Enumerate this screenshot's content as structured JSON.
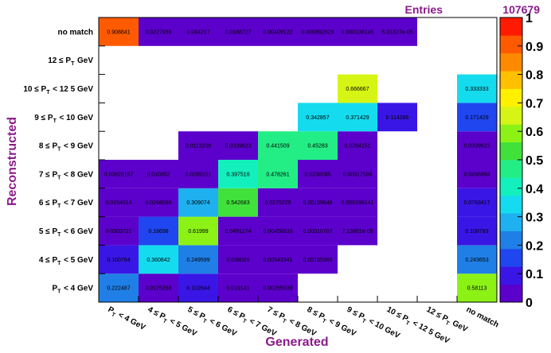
{
  "chart_data": {
    "type": "heatmap",
    "stats": {
      "label": "Entries",
      "value": "107679"
    },
    "xlabel": "Generated",
    "ylabel": "Reconstructed",
    "x_categories": [
      "P_T < 4 GeV",
      "4 ≤ P_T < 5 GeV",
      "5 ≤ P_T < 6 GeV",
      "6 ≤ P_T < 7 GeV",
      "7 ≤ P_T < 8 GeV",
      "8 ≤ P_T < 9 GeV",
      "9 ≤ P_T < 10 GeV",
      "10 ≤ P_T < 12 5 GeV",
      "12 ≤ P_T GeV",
      "no match"
    ],
    "y_categories": [
      "P_T < 4 GeV",
      "4 ≤ P_T < 5 GeV",
      "5 ≤ P_T < 6 GeV",
      "6 ≤ P_T < 7 GeV",
      "7 ≤ P_T < 8 GeV",
      "8 ≤ P_T < 9 GeV",
      "9 ≤ P_T < 10 GeV",
      "10 ≤ P_T < 12 5 GeV",
      "12 ≤ P_T GeV",
      "no match"
    ],
    "cells": [
      {
        "x": 0,
        "y": 0,
        "value": 0.222487,
        "label": "0.222487"
      },
      {
        "x": 1,
        "y": 0,
        "value": 0.0125288,
        "label": "0.0125288"
      },
      {
        "x": 2,
        "y": 0,
        "value": 0.102644,
        "label": "0.102644"
      },
      {
        "x": 3,
        "y": 0,
        "value": 0.019141,
        "label": "0.019141"
      },
      {
        "x": 4,
        "y": 0,
        "value": 0.00265939,
        "label": "0.00265939"
      },
      {
        "x": 9,
        "y": 0,
        "value": 0.58113,
        "label": "0.58113"
      },
      {
        "x": 0,
        "y": 1,
        "value": 0.100794,
        "label": "0.100794"
      },
      {
        "x": 1,
        "y": 1,
        "value": 0.360842,
        "label": "0.360842"
      },
      {
        "x": 2,
        "y": 1,
        "value": 0.249599,
        "label": "0.249599"
      },
      {
        "x": 3,
        "y": 1,
        "value": 0.038026,
        "label": "0.038026"
      },
      {
        "x": 4,
        "y": 1,
        "value": 0.00543341,
        "label": "0.00543341"
      },
      {
        "x": 5,
        "y": 1,
        "value": 0.00165365,
        "label": "0.00165365"
      },
      {
        "x": 9,
        "y": 1,
        "value": 0.243653,
        "label": "0.243653"
      },
      {
        "x": 0,
        "y": 2,
        "value": 0.0303722,
        "label": "0.0303722"
      },
      {
        "x": 1,
        "y": 2,
        "value": 0.18698,
        "label": "0.18698"
      },
      {
        "x": 2,
        "y": 2,
        "value": 0.61999,
        "label": "0.61999"
      },
      {
        "x": 3,
        "y": 2,
        "value": 0.0491274,
        "label": "0.0491274"
      },
      {
        "x": 4,
        "y": 2,
        "value": 0.00458833,
        "label": "0.00458833"
      },
      {
        "x": 5,
        "y": 2,
        "value": 0.00010707,
        "label": "0.00010707"
      },
      {
        "x": 6,
        "y": 2,
        "value": 7.13801e-05,
        "label": "7.13801e-05"
      },
      {
        "x": 9,
        "y": 2,
        "value": 0.108783,
        "label": "0.108783"
      },
      {
        "x": 0,
        "y": 3,
        "value": 0.0154014,
        "label": "0.0154014"
      },
      {
        "x": 1,
        "y": 3,
        "value": 0.0268099,
        "label": "0.0268099"
      },
      {
        "x": 2,
        "y": 3,
        "value": 0.309074,
        "label": "0.309074"
      },
      {
        "x": 3,
        "y": 3,
        "value": 0.542683,
        "label": "0.542683"
      },
      {
        "x": 4,
        "y": 3,
        "value": 0.0275229,
        "label": "0.0275229"
      },
      {
        "x": 5,
        "y": 3,
        "value": 0.00159648,
        "label": "0.00159648"
      },
      {
        "x": 6,
        "y": 3,
        "value": 0.000196141,
        "label": "0.000196141"
      },
      {
        "x": 9,
        "y": 3,
        "value": 0.0763417,
        "label": "0.0763417"
      },
      {
        "x": 0,
        "y": 4,
        "value": 0.00628157,
        "label": "0.00628157"
      },
      {
        "x": 1,
        "y": 4,
        "value": 0.010352,
        "label": "0.010352"
      },
      {
        "x": 2,
        "y": 4,
        "value": 0.0289151,
        "label": "0.0289151"
      },
      {
        "x": 3,
        "y": 4,
        "value": 0.397516,
        "label": "0.397516"
      },
      {
        "x": 4,
        "y": 4,
        "value": 0.478261,
        "label": "0.478261"
      },
      {
        "x": 5,
        "y": 4,
        "value": 0.0238095,
        "label": "0.0238095"
      },
      {
        "x": 6,
        "y": 4,
        "value": 0.00517598,
        "label": "0.00517598"
      },
      {
        "x": 9,
        "y": 4,
        "value": 0.0496894,
        "label": "0.0496894"
      },
      {
        "x": 2,
        "y": 5,
        "value": 0.0113208,
        "label": "0.0113208"
      },
      {
        "x": 3,
        "y": 5,
        "value": 0.0339623,
        "label": "0.0339623"
      },
      {
        "x": 4,
        "y": 5,
        "value": 0.441509,
        "label": "0.441509"
      },
      {
        "x": 5,
        "y": 5,
        "value": 0.45283,
        "label": "0.45283"
      },
      {
        "x": 6,
        "y": 5,
        "value": 0.0264151,
        "label": "0.0264151"
      },
      {
        "x": 9,
        "y": 5,
        "value": 0.0339623,
        "label": "0.0339623"
      },
      {
        "x": 5,
        "y": 6,
        "value": 0.342857,
        "label": "0.342857"
      },
      {
        "x": 6,
        "y": 6,
        "value": 0.371429,
        "label": "0.371429"
      },
      {
        "x": 7,
        "y": 6,
        "value": 0.114286,
        "label": "0.114286"
      },
      {
        "x": 9,
        "y": 6,
        "value": 0.171429,
        "label": "0.171429"
      },
      {
        "x": 6,
        "y": 7,
        "value": 0.666667,
        "label": "0.666667"
      },
      {
        "x": 9,
        "y": 7,
        "value": 0.333333,
        "label": "0.333333"
      },
      {
        "x": 0,
        "y": 9,
        "value": 0.908841,
        "label": "0.908841"
      },
      {
        "x": 1,
        "y": 9,
        "value": 0.0227939,
        "label": "0.0227939"
      },
      {
        "x": 2,
        "y": 9,
        "value": 0.044217,
        "label": "0.044217"
      },
      {
        "x": 3,
        "y": 9,
        "value": 0.0188727,
        "label": "0.0188727"
      },
      {
        "x": 4,
        "y": 9,
        "value": 0.00409122,
        "label": "0.00409122"
      },
      {
        "x": 5,
        "y": 9,
        "value": 0.000892629,
        "label": "0.000892629"
      },
      {
        "x": 6,
        "y": 9,
        "value": 0.000138145,
        "label": "0.000138145"
      },
      {
        "x": 7,
        "y": 9,
        "value": 5.31327e-05,
        "label": "5.31327e-05"
      }
    ],
    "z_range": [
      0,
      1
    ],
    "z_ticks": [
      "0",
      "0.1",
      "0.2",
      "0.3",
      "0.4",
      "0.5",
      "0.6",
      "0.7",
      "0.8",
      "0.9",
      "1"
    ],
    "palette": [
      "#5c00cc",
      "#3a16e6",
      "#2046f0",
      "#1f7fe6",
      "#1fb0ef",
      "#14dcee",
      "#14f0bd",
      "#23ee85",
      "#41e13c",
      "#8cf216",
      "#d7f514",
      "#fff000",
      "#ffc000",
      "#ff8a00",
      "#ff5a00",
      "#ff1a00"
    ]
  }
}
